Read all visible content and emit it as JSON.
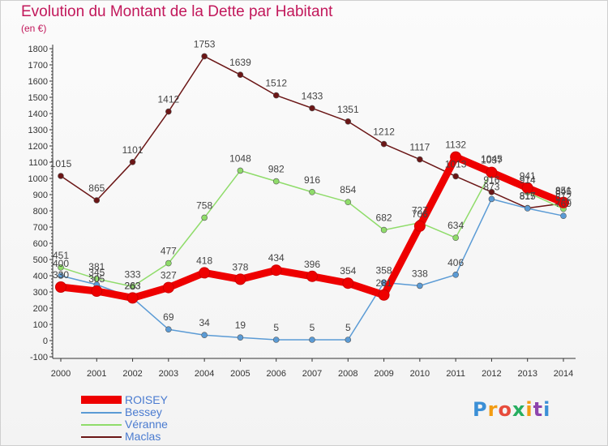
{
  "header": {
    "title": "Evolution du Montant de la Dette par Habitant",
    "unit": "(en €)"
  },
  "brand": {
    "text": "Proxiti",
    "colors": [
      "#3b8fd6",
      "#f39c12",
      "#e74c3c",
      "#27ae60",
      "#8e44ad"
    ]
  },
  "chart_data": {
    "type": "line",
    "title": "Evolution du Montant de la Dette par Habitant",
    "ylabel": "(en €)",
    "xlabel": "",
    "ylim": [
      -100,
      1800
    ],
    "yticks": [
      -100,
      0,
      100,
      200,
      300,
      400,
      500,
      600,
      700,
      800,
      900,
      1000,
      1100,
      1200,
      1300,
      1400,
      1500,
      1600,
      1700,
      1800
    ],
    "x": [
      "2000",
      "2001",
      "2002",
      "2003",
      "2004",
      "2005",
      "2006",
      "2007",
      "2008",
      "2009",
      "2010",
      "2011",
      "2012",
      "2013",
      "2014"
    ],
    "grid": false,
    "legend_position": "bottom-left",
    "series": [
      {
        "name": "ROISEY",
        "color": "#ee0000",
        "values": [
          330,
          305,
          263,
          327,
          418,
          378,
          434,
          396,
          354,
          281,
          706,
          1132,
          1037,
          941,
          851
        ]
      },
      {
        "name": "Bessey",
        "color": "#5b9bd5",
        "values": [
          400,
          345,
          263,
          69,
          34,
          19,
          5,
          5,
          5,
          358,
          338,
          406,
          873,
          815,
          769
        ]
      },
      {
        "name": "Véranne",
        "color": "#8fdc6a",
        "values": [
          451,
          381,
          333,
          477,
          758,
          1048,
          982,
          916,
          854,
          682,
          727,
          634,
          1045,
          914,
          812
        ]
      },
      {
        "name": "Maclas",
        "color": "#6b1616",
        "values": [
          1015,
          865,
          1101,
          1412,
          1753,
          1639,
          1512,
          1433,
          1351,
          1212,
          1117,
          1013,
          916,
          817,
          846
        ]
      }
    ]
  }
}
